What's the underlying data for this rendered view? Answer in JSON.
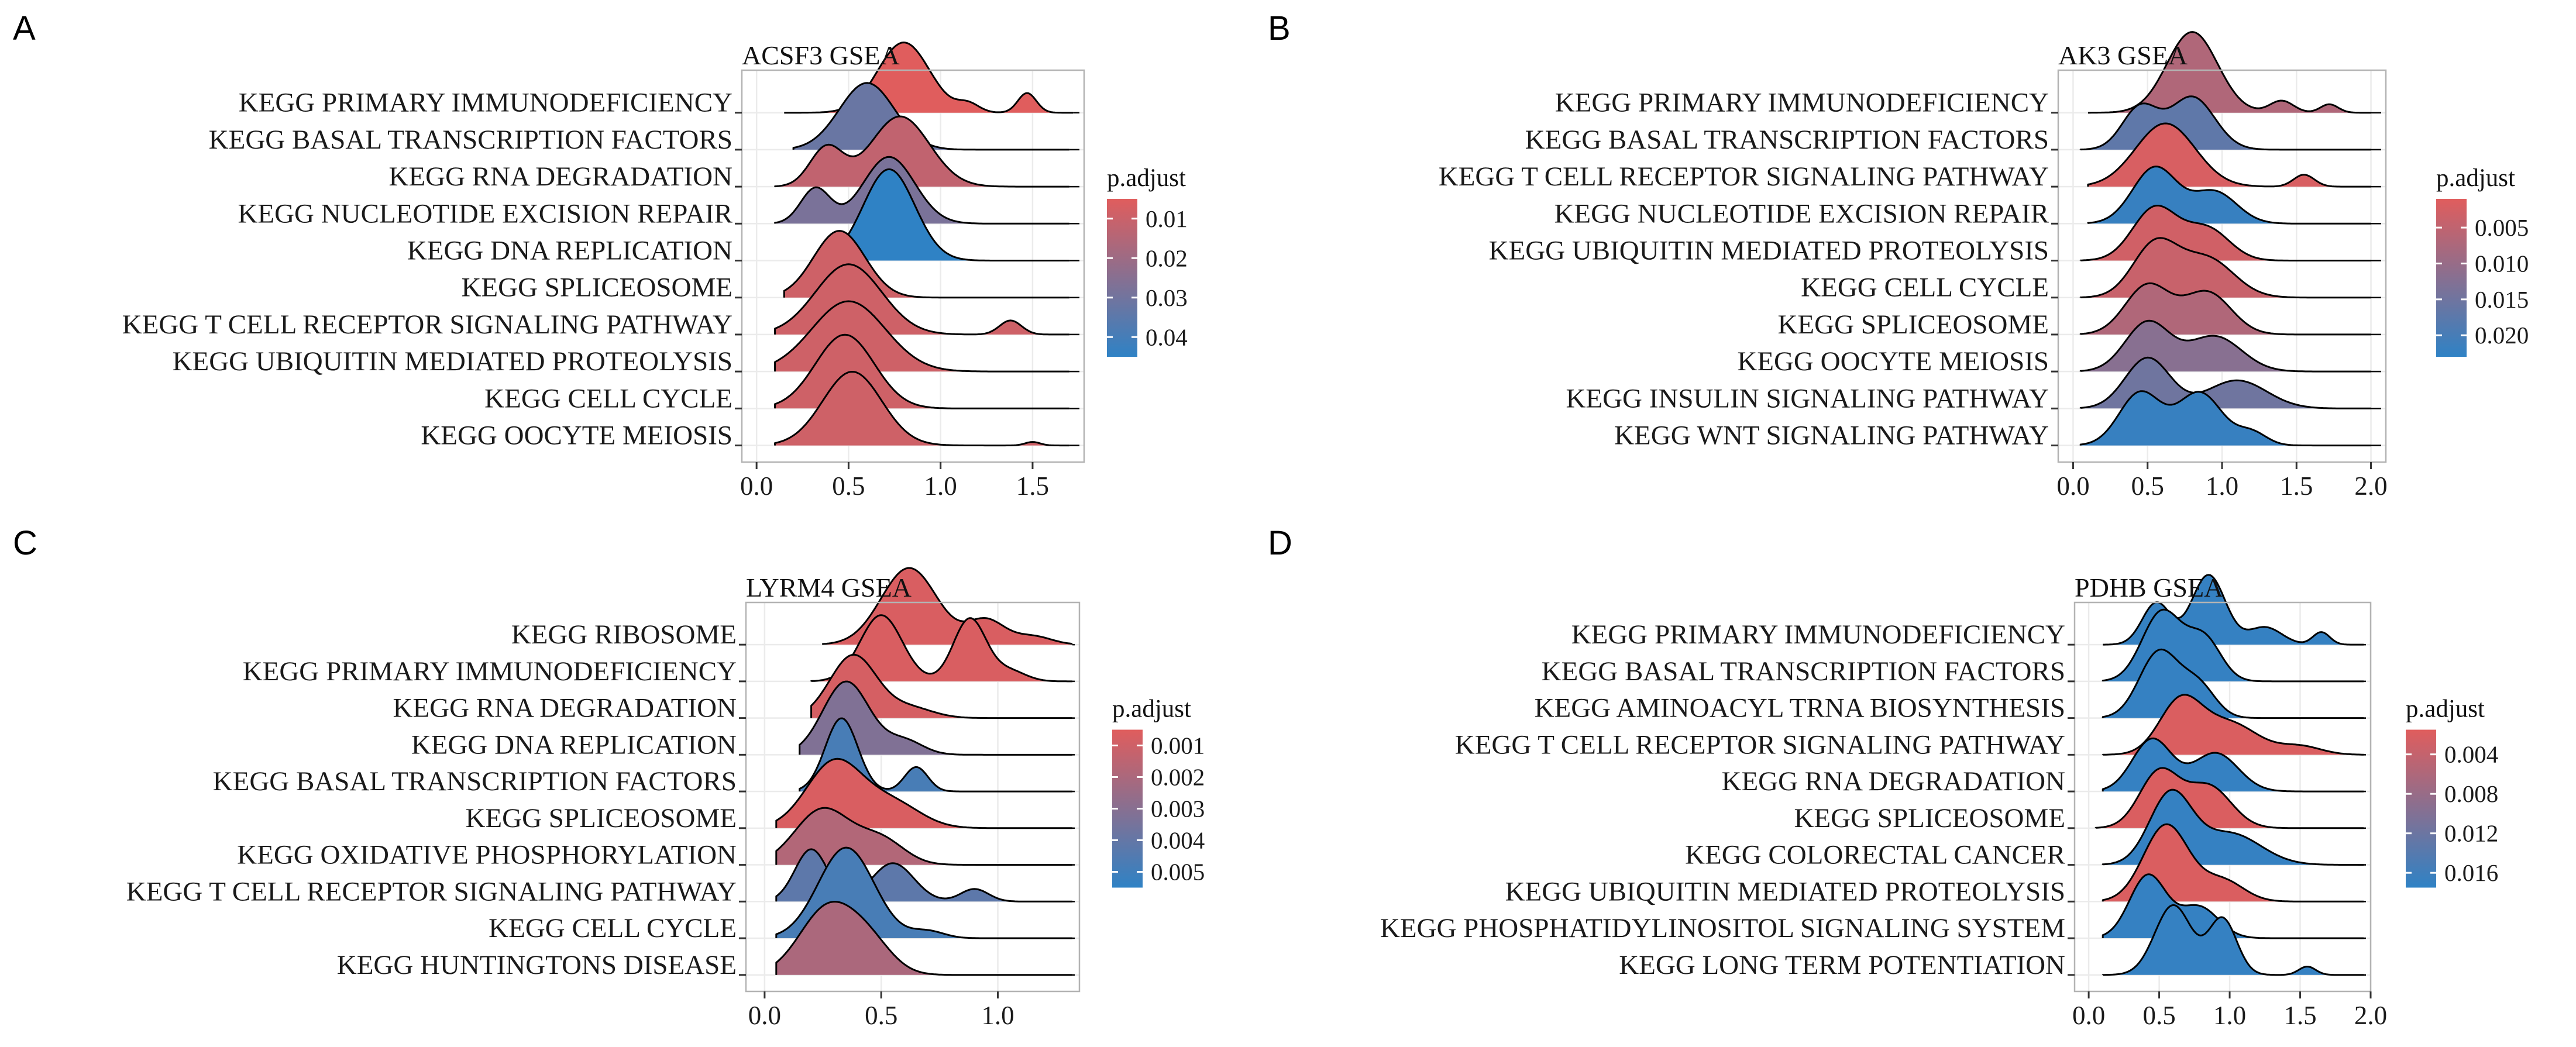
{
  "colors": {
    "low": "#e05d5d",
    "high": "#2f82c5",
    "panel_bg": "#ffffff",
    "grid": "#ebebeb",
    "frame": "#b3b3b3"
  },
  "chart_data": [
    {
      "type": "ridgeline",
      "panel": "A",
      "title": "ACSF3 GSEA",
      "xlim": [
        -0.08,
        1.78
      ],
      "xticks": [
        0,
        0.5,
        1,
        1.5
      ],
      "xtick_labels": [
        "0.0",
        "0.5",
        "1.0",
        "1.5"
      ],
      "legend": {
        "title": "p.adjust",
        "min": 0.005,
        "max": 0.045,
        "ticks": [
          0.01,
          0.02,
          0.03,
          0.04
        ],
        "tick_labels": [
          "0.01",
          "0.02",
          "0.03",
          "0.04"
        ]
      },
      "categories": [
        {
          "label": "KEGG PRIMARY IMMUNODEFICIENCY",
          "p_adjust": 0.005,
          "x_min": 0.15,
          "x_max": 1.72,
          "peaks": [
            [
              0.8,
              0.14,
              1.0
            ],
            [
              1.47,
              0.05,
              0.28
            ],
            [
              1.15,
              0.06,
              0.12
            ]
          ]
        },
        {
          "label": "KEGG BASAL TRANSCRIPTION FACTORS",
          "p_adjust": 0.032,
          "x_min": 0.2,
          "x_max": 1.7,
          "peaks": [
            [
              0.6,
              0.15,
              0.95
            ]
          ]
        },
        {
          "label": "KEGG RNA DEGRADATION",
          "p_adjust": 0.012,
          "x_min": 0.1,
          "x_max": 1.7,
          "peaks": [
            [
              0.38,
              0.09,
              0.55
            ],
            [
              0.78,
              0.16,
              1.0
            ]
          ]
        },
        {
          "label": "KEGG NUCLEOTIDE EXCISION REPAIR",
          "p_adjust": 0.028,
          "x_min": 0.1,
          "x_max": 1.7,
          "peaks": [
            [
              0.32,
              0.08,
              0.5
            ],
            [
              0.72,
              0.14,
              0.95
            ]
          ]
        },
        {
          "label": "KEGG DNA REPLICATION",
          "p_adjust": 0.045,
          "x_min": 0.3,
          "x_max": 1.7,
          "peaks": [
            [
              0.72,
              0.14,
              1.3
            ]
          ]
        },
        {
          "label": "KEGG SPLICEOSOME",
          "p_adjust": 0.009,
          "x_min": 0.15,
          "x_max": 1.7,
          "peaks": [
            [
              0.45,
              0.14,
              0.95
            ]
          ]
        },
        {
          "label": "KEGG T CELL RECEPTOR SIGNALING PATHWAY",
          "p_adjust": 0.009,
          "x_min": 0.1,
          "x_max": 1.7,
          "peaks": [
            [
              0.5,
              0.18,
              1.0
            ],
            [
              1.38,
              0.06,
              0.2
            ]
          ]
        },
        {
          "label": "KEGG UBIQUITIN MEDIATED PROTEOLYSIS",
          "p_adjust": 0.009,
          "x_min": 0.1,
          "x_max": 1.7,
          "peaks": [
            [
              0.5,
              0.2,
              1.0
            ]
          ]
        },
        {
          "label": "KEGG CELL CYCLE",
          "p_adjust": 0.009,
          "x_min": 0.1,
          "x_max": 1.7,
          "peaks": [
            [
              0.48,
              0.16,
              1.05
            ]
          ]
        },
        {
          "label": "KEGG OOCYTE MEIOSIS",
          "p_adjust": 0.009,
          "x_min": 0.1,
          "x_max": 1.7,
          "peaks": [
            [
              0.52,
              0.16,
              1.05
            ],
            [
              1.5,
              0.04,
              0.05
            ]
          ]
        }
      ]
    },
    {
      "type": "ridgeline",
      "panel": "B",
      "title": "AK3 GSEA",
      "xlim": [
        -0.1,
        2.1
      ],
      "xticks": [
        0,
        0.5,
        1,
        1.5,
        2
      ],
      "xtick_labels": [
        "0.0",
        "0.5",
        "1.0",
        "1.5",
        "2.0"
      ],
      "legend": {
        "title": "p.adjust",
        "min": 0.001,
        "max": 0.023,
        "ticks": [
          0.005,
          0.01,
          0.015,
          0.02
        ],
        "tick_labels": [
          "0.005",
          "0.010",
          "0.015",
          "0.020"
        ]
      },
      "categories": [
        {
          "label": "KEGG PRIMARY IMMUNODEFICIENCY",
          "p_adjust": 0.007,
          "x_min": 0.1,
          "x_max": 2.0,
          "peaks": [
            [
              0.8,
              0.17,
              1.15
            ],
            [
              1.4,
              0.08,
              0.17
            ],
            [
              1.72,
              0.06,
              0.12
            ]
          ]
        },
        {
          "label": "KEGG BASAL TRANSCRIPTION FACTORS",
          "p_adjust": 0.017,
          "x_min": 0.05,
          "x_max": 2.0,
          "peaks": [
            [
              0.45,
              0.12,
              0.6
            ],
            [
              0.8,
              0.15,
              0.75
            ]
          ]
        },
        {
          "label": "KEGG T CELL RECEPTOR SIGNALING PATHWAY",
          "p_adjust": 0.002,
          "x_min": 0.1,
          "x_max": 2.0,
          "peaks": [
            [
              0.62,
              0.2,
              0.9
            ],
            [
              1.55,
              0.07,
              0.17
            ]
          ]
        },
        {
          "label": "KEGG NUCLEOTIDE EXCISION REPAIR",
          "p_adjust": 0.022,
          "x_min": 0.1,
          "x_max": 2.0,
          "peaks": [
            [
              0.55,
              0.15,
              0.8
            ],
            [
              0.95,
              0.15,
              0.45
            ]
          ]
        },
        {
          "label": "KEGG UBIQUITIN MEDIATED PROTEOLYSIS",
          "p_adjust": 0.003,
          "x_min": 0.05,
          "x_max": 2.0,
          "peaks": [
            [
              0.55,
              0.15,
              0.75
            ],
            [
              0.9,
              0.15,
              0.45
            ]
          ]
        },
        {
          "label": "KEGG CELL CYCLE",
          "p_adjust": 0.004,
          "x_min": 0.05,
          "x_max": 2.0,
          "peaks": [
            [
              0.55,
              0.15,
              0.75
            ],
            [
              0.9,
              0.18,
              0.55
            ]
          ]
        },
        {
          "label": "KEGG SPLICEOSOME",
          "p_adjust": 0.007,
          "x_min": 0.05,
          "x_max": 2.0,
          "peaks": [
            [
              0.5,
              0.15,
              0.7
            ],
            [
              0.9,
              0.16,
              0.6
            ]
          ]
        },
        {
          "label": "KEGG OOCYTE MEIOSIS",
          "p_adjust": 0.012,
          "x_min": 0.05,
          "x_max": 2.0,
          "peaks": [
            [
              0.5,
              0.15,
              0.7
            ],
            [
              0.95,
              0.18,
              0.5
            ]
          ]
        },
        {
          "label": "KEGG INSULIN SIGNALING PATHWAY",
          "p_adjust": 0.015,
          "x_min": 0.05,
          "x_max": 2.0,
          "peaks": [
            [
              0.5,
              0.15,
              0.72
            ],
            [
              1.1,
              0.2,
              0.4
            ]
          ]
        },
        {
          "label": "KEGG WNT SIGNALING PATHWAY",
          "p_adjust": 0.022,
          "x_min": 0.05,
          "x_max": 2.0,
          "peaks": [
            [
              0.45,
              0.14,
              0.75
            ],
            [
              0.85,
              0.15,
              0.75
            ],
            [
              1.2,
              0.1,
              0.18
            ]
          ]
        }
      ]
    },
    {
      "type": "ridgeline",
      "panel": "C",
      "title": "LYRM4 GSEA",
      "xlim": [
        -0.08,
        1.35
      ],
      "xticks": [
        0,
        0.5,
        1
      ],
      "xtick_labels": [
        "0.0",
        "0.5",
        "1.0"
      ],
      "legend": {
        "title": "p.adjust",
        "min": 0.0005,
        "max": 0.0055,
        "ticks": [
          0.001,
          0.002,
          0.003,
          0.004,
          0.005
        ],
        "tick_labels": [
          "0.001",
          "0.002",
          "0.003",
          "0.004",
          "0.005"
        ]
      },
      "categories": [
        {
          "label": "KEGG RIBOSOME",
          "p_adjust": 0.0007,
          "x_min": 0.25,
          "x_max": 1.32,
          "peaks": [
            [
              0.62,
              0.12,
              1.1
            ],
            [
              0.95,
              0.08,
              0.35
            ],
            [
              1.15,
              0.08,
              0.12
            ]
          ]
        },
        {
          "label": "KEGG PRIMARY IMMUNODEFICIENCY",
          "p_adjust": 0.0007,
          "x_min": 0.2,
          "x_max": 1.32,
          "peaks": [
            [
              0.5,
              0.09,
              0.95
            ],
            [
              0.88,
              0.07,
              0.9
            ],
            [
              1.05,
              0.07,
              0.15
            ]
          ]
        },
        {
          "label": "KEGG RNA DEGRADATION",
          "p_adjust": 0.0008,
          "x_min": 0.2,
          "x_max": 1.32,
          "peaks": [
            [
              0.38,
              0.1,
              0.9
            ],
            [
              0.62,
              0.1,
              0.15
            ]
          ]
        },
        {
          "label": "KEGG DNA REPLICATION",
          "p_adjust": 0.0032,
          "x_min": 0.15,
          "x_max": 1.32,
          "peaks": [
            [
              0.35,
              0.1,
              1.05
            ],
            [
              0.6,
              0.08,
              0.2
            ]
          ]
        },
        {
          "label": "KEGG BASAL TRANSCRIPTION FACTORS",
          "p_adjust": 0.0048,
          "x_min": 0.15,
          "x_max": 1.32,
          "peaks": [
            [
              0.33,
              0.07,
              1.05
            ],
            [
              0.65,
              0.05,
              0.35
            ]
          ]
        },
        {
          "label": "KEGG SPLICEOSOME",
          "p_adjust": 0.0007,
          "x_min": 0.05,
          "x_max": 1.32,
          "peaks": [
            [
              0.3,
              0.12,
              0.95
            ],
            [
              0.55,
              0.12,
              0.35
            ]
          ]
        },
        {
          "label": "KEGG OXIDATIVE PHOSPHORYLATION",
          "p_adjust": 0.0018,
          "x_min": 0.05,
          "x_max": 1.32,
          "peaks": [
            [
              0.25,
              0.12,
              0.8
            ],
            [
              0.5,
              0.1,
              0.35
            ]
          ]
        },
        {
          "label": "KEGG T CELL RECEPTOR SIGNALING PATHWAY",
          "p_adjust": 0.0042,
          "x_min": 0.05,
          "x_max": 1.32,
          "peaks": [
            [
              0.2,
              0.07,
              0.75
            ],
            [
              0.55,
              0.09,
              0.55
            ],
            [
              0.9,
              0.06,
              0.18
            ]
          ]
        },
        {
          "label": "KEGG CELL CYCLE",
          "p_adjust": 0.0048,
          "x_min": 0.05,
          "x_max": 1.32,
          "peaks": [
            [
              0.35,
              0.12,
              1.3
            ],
            [
              0.7,
              0.07,
              0.1
            ]
          ]
        },
        {
          "label": "KEGG HUNTINGTONS DISEASE",
          "p_adjust": 0.002,
          "x_min": 0.05,
          "x_max": 1.32,
          "peaks": [
            [
              0.27,
              0.12,
              0.95
            ],
            [
              0.45,
              0.1,
              0.4
            ]
          ]
        }
      ]
    },
    {
      "type": "ridgeline",
      "panel": "D",
      "title": "PDHB GSEA",
      "xlim": [
        -0.1,
        2.0
      ],
      "xticks": [
        0,
        0.5,
        1,
        1.5,
        2
      ],
      "xtick_labels": [
        "0.0",
        "0.5",
        "1.0",
        "1.5",
        "2.0"
      ],
      "legend": {
        "title": "p.adjust",
        "min": 0.0015,
        "max": 0.0175,
        "ticks": [
          0.004,
          0.008,
          0.012,
          0.016
        ],
        "tick_labels": [
          "0.004",
          "0.008",
          "0.012",
          "0.016"
        ]
      },
      "categories": [
        {
          "label": "KEGG PRIMARY IMMUNODEFICIENCY",
          "p_adjust": 0.017,
          "x_min": 0.1,
          "x_max": 1.95,
          "peaks": [
            [
              0.48,
              0.1,
              0.6
            ],
            [
              0.85,
              0.12,
              1.0
            ],
            [
              1.25,
              0.12,
              0.25
            ],
            [
              1.65,
              0.06,
              0.18
            ]
          ]
        },
        {
          "label": "KEGG BASAL TRANSCRIPTION FACTORS",
          "p_adjust": 0.017,
          "x_min": 0.1,
          "x_max": 1.95,
          "peaks": [
            [
              0.52,
              0.14,
              1.0
            ],
            [
              0.82,
              0.12,
              0.6
            ]
          ]
        },
        {
          "label": "KEGG AMINOACYL TRNA BIOSYNTHESIS",
          "p_adjust": 0.017,
          "x_min": 0.1,
          "x_max": 1.95,
          "peaks": [
            [
              0.5,
              0.14,
              0.95
            ],
            [
              0.78,
              0.12,
              0.45
            ]
          ]
        },
        {
          "label": "KEGG T CELL RECEPTOR SIGNALING PATHWAY",
          "p_adjust": 0.002,
          "x_min": 0.1,
          "x_max": 1.95,
          "peaks": [
            [
              0.65,
              0.15,
              0.75
            ],
            [
              1.0,
              0.2,
              0.45
            ],
            [
              1.5,
              0.15,
              0.12
            ]
          ]
        },
        {
          "label": "KEGG RNA DEGRADATION",
          "p_adjust": 0.017,
          "x_min": 0.1,
          "x_max": 1.95,
          "peaks": [
            [
              0.45,
              0.14,
              0.75
            ],
            [
              0.9,
              0.16,
              0.55
            ]
          ]
        },
        {
          "label": "KEGG SPLICEOSOME",
          "p_adjust": 0.002,
          "x_min": 0.05,
          "x_max": 1.95,
          "peaks": [
            [
              0.5,
              0.14,
              0.8
            ],
            [
              0.85,
              0.16,
              0.6
            ]
          ]
        },
        {
          "label": "KEGG COLORECTAL CANCER",
          "p_adjust": 0.017,
          "x_min": 0.1,
          "x_max": 1.95,
          "peaks": [
            [
              0.58,
              0.15,
              1.0
            ],
            [
              1.0,
              0.22,
              0.45
            ]
          ]
        },
        {
          "label": "KEGG UBIQUITIN MEDIATED PROTEOLYSIS",
          "p_adjust": 0.002,
          "x_min": 0.1,
          "x_max": 1.95,
          "peaks": [
            [
              0.55,
              0.16,
              1.1
            ],
            [
              0.95,
              0.15,
              0.3
            ]
          ]
        },
        {
          "label": "KEGG PHOSPHATIDYLINOSITOL SIGNALING SYSTEM",
          "p_adjust": 0.017,
          "x_min": 0.1,
          "x_max": 1.95,
          "peaks": [
            [
              0.42,
              0.13,
              0.9
            ],
            [
              0.78,
              0.14,
              0.45
            ]
          ]
        },
        {
          "label": "KEGG LONG TERM POTENTIATION",
          "p_adjust": 0.017,
          "x_min": 0.1,
          "x_max": 1.95,
          "peaks": [
            [
              0.6,
              0.13,
              1.0
            ],
            [
              0.95,
              0.1,
              0.8
            ],
            [
              1.55,
              0.06,
              0.12
            ]
          ]
        }
      ]
    }
  ]
}
